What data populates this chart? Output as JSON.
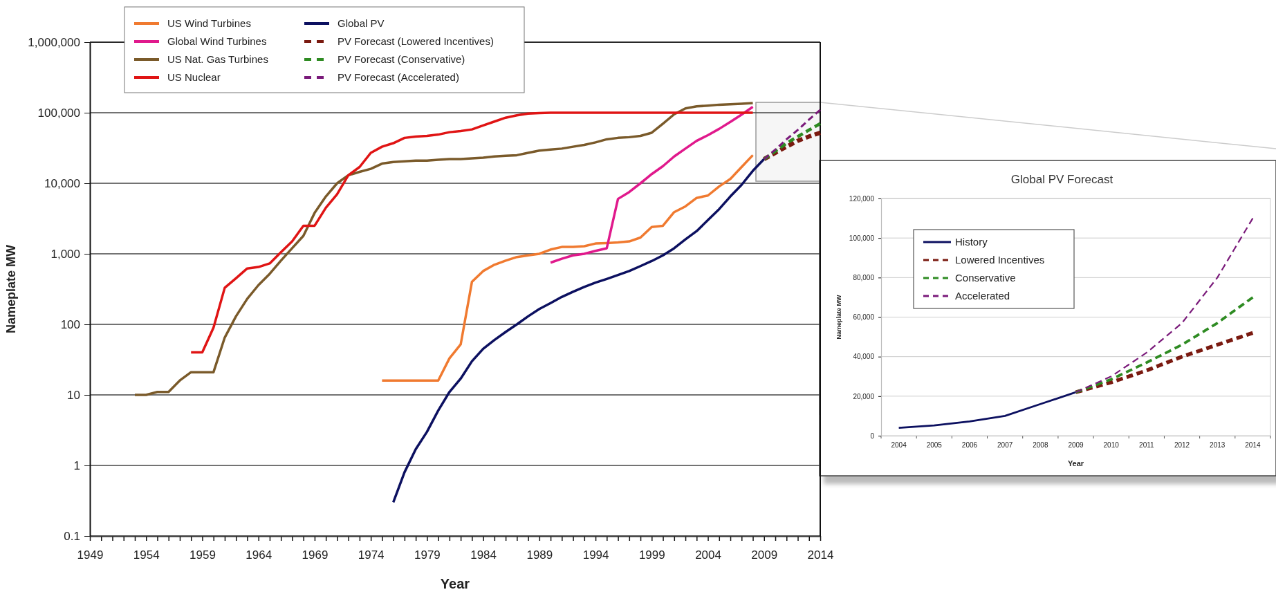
{
  "chart_data": [
    {
      "type": "line",
      "xlabel": "Year",
      "ylabel": "Nameplate MW",
      "log": "y",
      "grid": "y",
      "legend": "top left",
      "xlim": [
        1949,
        2014
      ],
      "ylim": [
        0.1,
        1000000
      ],
      "xticks": [
        1949,
        {
          "value": 1950,
          "label": null
        },
        {
          "value": 1951,
          "label": null
        },
        {
          "value": 1952,
          "label": null
        },
        {
          "value": 1953,
          "label": null
        },
        1954,
        {
          "value": 1955,
          "label": null
        },
        {
          "value": 1956,
          "label": null
        },
        {
          "value": 1957,
          "label": null
        },
        {
          "value": 1958,
          "label": null
        },
        1959,
        {
          "value": 1960,
          "label": null
        },
        {
          "value": 1961,
          "label": null
        },
        {
          "value": 1962,
          "label": null
        },
        {
          "value": 1963,
          "label": null
        },
        1964,
        {
          "value": 1965,
          "label": null
        },
        {
          "value": 1966,
          "label": null
        },
        {
          "value": 1967,
          "label": null
        },
        {
          "value": 1968,
          "label": null
        },
        1969,
        {
          "value": 1970,
          "label": null
        },
        {
          "value": 1971,
          "label": null
        },
        {
          "value": 1972,
          "label": null
        },
        {
          "value": 1973,
          "label": null
        },
        1974,
        {
          "value": 1975,
          "label": null
        },
        {
          "value": 1976,
          "label": null
        },
        {
          "value": 1977,
          "label": null
        },
        {
          "value": 1978,
          "label": null
        },
        1979,
        {
          "value": 1980,
          "label": null
        },
        {
          "value": 1981,
          "label": null
        },
        {
          "value": 1982,
          "label": null
        },
        {
          "value": 1983,
          "label": null
        },
        1984,
        {
          "value": 1985,
          "label": null
        },
        {
          "value": 1986,
          "label": null
        },
        {
          "value": 1987,
          "label": null
        },
        {
          "value": 1988,
          "label": null
        },
        1989,
        {
          "value": 1990,
          "label": null
        },
        {
          "value": 1991,
          "label": null
        },
        {
          "value": 1992,
          "label": null
        },
        {
          "value": 1993,
          "label": null
        },
        1994,
        {
          "value": 1995,
          "label": null
        },
        {
          "value": 1996,
          "label": null
        },
        {
          "value": 1997,
          "label": null
        },
        {
          "value": 1998,
          "label": null
        },
        1999,
        {
          "value": 2000,
          "label": null
        },
        {
          "value": 2001,
          "label": null
        },
        {
          "value": 2002,
          "label": null
        },
        {
          "value": 2003,
          "label": null
        },
        2004,
        {
          "value": 2005,
          "label": null
        },
        {
          "value": 2006,
          "label": null
        },
        {
          "value": 2007,
          "label": null
        },
        {
          "value": 2008,
          "label": null
        },
        2009,
        {
          "value": 2010,
          "label": null
        },
        {
          "value": 2011,
          "label": null
        },
        {
          "value": 2012,
          "label": null
        },
        {
          "value": 2013,
          "label": null
        },
        2014
      ],
      "yticks": [
        0.1,
        1,
        10,
        100,
        {
          "value": 1000,
          "label": "1,000"
        },
        {
          "value": 10000,
          "label": "10,000"
        },
        {
          "value": 100000,
          "label": "100,000"
        },
        {
          "value": 1000000,
          "label": "1,000,000"
        }
      ],
      "series": [
        {
          "name": "US Wind Turbines",
          "color": "#f07a30",
          "x": [
            1975,
            1980,
            1981,
            1982,
            1983,
            1984,
            1985,
            1986,
            1987,
            1988,
            1989,
            1990,
            1991,
            1992,
            1993,
            1994,
            1995,
            1996,
            1997,
            1998,
            1999,
            2000,
            2001,
            2002,
            2003,
            2004,
            2005,
            2006,
            2007,
            2008
          ],
          "values": [
            16,
            16,
            33,
            52,
            400,
            570,
            700,
            800,
            900,
            950,
            1000,
            1150,
            1250,
            1250,
            1280,
            1400,
            1420,
            1450,
            1500,
            1700,
            2400,
            2500,
            3900,
            4700,
            6200,
            6700,
            9000,
            11500,
            17000,
            25000
          ]
        },
        {
          "name": "Global Wind Turbines",
          "color": "#e0198c",
          "x": [
            1990,
            1991,
            1992,
            1993,
            1994,
            1995,
            1996,
            1997,
            1998,
            1999,
            2000,
            2001,
            2002,
            2003,
            2004,
            2005,
            2006,
            2007,
            2008
          ],
          "values": [
            750,
            850,
            950,
            1000,
            1100,
            1200,
            6000,
            7500,
            10000,
            13500,
            17500,
            24000,
            31000,
            40000,
            48000,
            59000,
            74000,
            94000,
            121000
          ]
        },
        {
          "name": "US Nat. Gas Turbines",
          "color": "#7a5a2a",
          "x": [
            1953,
            1954,
            1955,
            1956,
            1957,
            1958,
            1959,
            1960,
            1961,
            1962,
            1963,
            1964,
            1965,
            1966,
            1967,
            1968,
            1969,
            1970,
            1971,
            1972,
            1973,
            1974,
            1975,
            1976,
            1977,
            1978,
            1979,
            1980,
            1981,
            1982,
            1983,
            1984,
            1985,
            1986,
            1987,
            1988,
            1989,
            1990,
            1991,
            1992,
            1993,
            1994,
            1995,
            1996,
            1997,
            1998,
            1999,
            2000,
            2001,
            2002,
            2003,
            2004,
            2005,
            2006,
            2007,
            2008
          ],
          "values": [
            10,
            10,
            11,
            11,
            16,
            21,
            21,
            21,
            65,
            130,
            230,
            360,
            520,
            800,
            1200,
            1800,
            3800,
            6500,
            10000,
            13000,
            14500,
            16000,
            19000,
            20000,
            20500,
            21000,
            21000,
            21500,
            22000,
            22000,
            22500,
            23000,
            24000,
            24500,
            25000,
            27000,
            29000,
            30000,
            31000,
            33000,
            35000,
            38000,
            42000,
            44000,
            45000,
            47000,
            52000,
            70000,
            95000,
            115000,
            123000,
            126000,
            130000,
            132000,
            134000,
            137000
          ]
        },
        {
          "name": "US Nuclear",
          "color": "#e01414",
          "x": [
            1958,
            1959,
            1960,
            1961,
            1962,
            1963,
            1964,
            1965,
            1966,
            1967,
            1968,
            1969,
            1970,
            1971,
            1972,
            1973,
            1974,
            1975,
            1976,
            1977,
            1978,
            1979,
            1980,
            1981,
            1982,
            1983,
            1984,
            1985,
            1986,
            1987,
            1988,
            1989,
            1990,
            2008
          ],
          "values": [
            40,
            40,
            90,
            330,
            450,
            620,
            650,
            730,
            1050,
            1500,
            2500,
            2500,
            4500,
            7000,
            13000,
            17000,
            27000,
            33000,
            37000,
            44000,
            46000,
            47000,
            49000,
            53000,
            55000,
            58000,
            66000,
            75000,
            85000,
            92000,
            97000,
            99000,
            100000,
            100000
          ]
        },
        {
          "name": "Global PV",
          "color": "#0c1060",
          "x": [
            1976,
            1977,
            1978,
            1979,
            1980,
            1981,
            1982,
            1983,
            1984,
            1985,
            1986,
            1987,
            1988,
            1989,
            1990,
            1991,
            1992,
            1993,
            1994,
            1995,
            1996,
            1997,
            1998,
            1999,
            2000,
            2001,
            2002,
            2003,
            2004,
            2005,
            2006,
            2007,
            2008,
            2009
          ],
          "values": [
            0.3,
            0.8,
            1.7,
            3,
            6,
            11,
            17,
            30,
            45,
            60,
            78,
            100,
            130,
            165,
            200,
            245,
            290,
            340,
            390,
            440,
            500,
            570,
            670,
            790,
            950,
            1200,
            1600,
            2100,
            3000,
            4300,
            6500,
            9500,
            15000,
            22000
          ]
        },
        {
          "name": "PV Forecast (Lowered Incentives)",
          "color": "#7a1a10",
          "line_style": "dashed",
          "x": [
            2009,
            2010,
            2011,
            2012,
            2013,
            2014
          ],
          "values": [
            22000,
            27000,
            33000,
            40000,
            46000,
            52000
          ]
        },
        {
          "name": "PV Forecast (Conservative)",
          "color": "#2e8b22",
          "line_style": "dashed",
          "x": [
            2009,
            2010,
            2011,
            2012,
            2013,
            2014
          ],
          "values": [
            22000,
            28500,
            37000,
            46000,
            57000,
            70000
          ]
        },
        {
          "name": "PV Forecast (Accelerated)",
          "color": "#7a1a7a",
          "line_style": "dashed",
          "x": [
            2009,
            2010,
            2011,
            2012,
            2013,
            2014
          ],
          "values": [
            22000,
            30000,
            42000,
            57000,
            80000,
            110000
          ]
        }
      ]
    },
    {
      "type": "line",
      "title": "Global PV Forecast",
      "xlabel": "Year",
      "ylabel": "Nameplate MW",
      "grid": "y",
      "legend": "top left",
      "categories": [
        "2004",
        "2005",
        "2006",
        "2007",
        "2008",
        "2009",
        "2010",
        "2011",
        "2012",
        "2013",
        "2014"
      ],
      "ylim": [
        0,
        120000
      ],
      "yticks": [
        0,
        {
          "value": 20000,
          "label": "20,000"
        },
        {
          "value": 40000,
          "label": "40,000"
        },
        {
          "value": 60000,
          "label": "60,000"
        },
        {
          "value": 80000,
          "label": "80,000"
        },
        {
          "value": 100000,
          "label": "100,000"
        },
        {
          "value": 120000,
          "label": "120,000"
        }
      ],
      "series": [
        {
          "name": "History",
          "color": "#0c1060",
          "values": [
            4000,
            5200,
            7200,
            10000,
            16000,
            22000,
            null,
            null,
            null,
            null,
            null
          ]
        },
        {
          "name": "Lowered Incentives",
          "color": "#7a1a10",
          "line_style": "dashed",
          "values": [
            null,
            null,
            null,
            null,
            null,
            22000,
            27000,
            33000,
            40000,
            46000,
            52000
          ]
        },
        {
          "name": "Conservative",
          "color": "#2e8b22",
          "line_style": "dashed",
          "values": [
            null,
            null,
            null,
            null,
            null,
            22000,
            28500,
            37000,
            46000,
            57000,
            70000
          ]
        },
        {
          "name": "Accelerated",
          "color": "#7a1a7a",
          "line_style": "dashed",
          "values": [
            null,
            null,
            null,
            null,
            null,
            22000,
            30000,
            42000,
            57000,
            80000,
            110000
          ]
        }
      ]
    }
  ]
}
